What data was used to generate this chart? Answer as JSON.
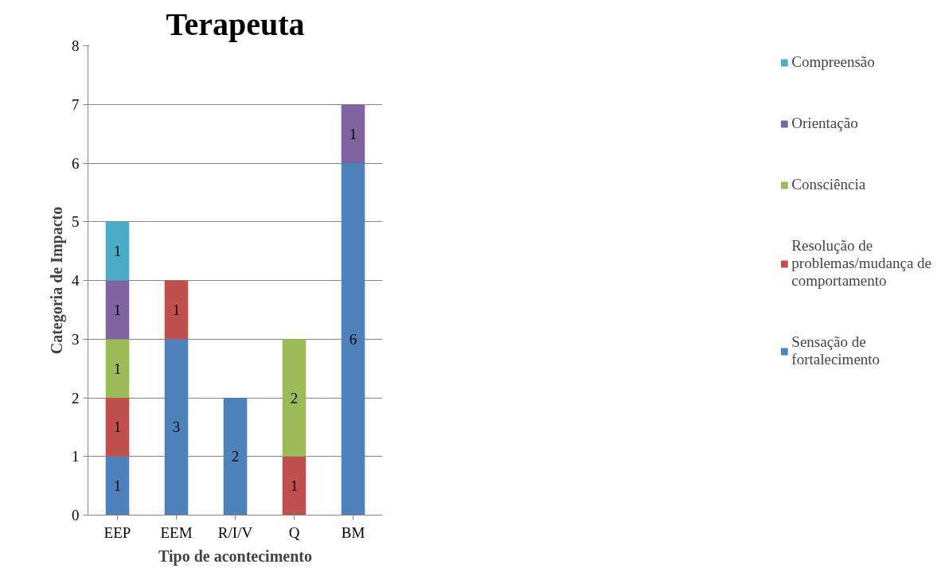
{
  "chart_data": {
    "type": "bar",
    "title": "Terapeuta",
    "xlabel": "Tipo de acontecimento",
    "ylabel": "Categoria de Impacto",
    "categories": [
      "EEP",
      "EEM",
      "R/I/V",
      "Q",
      "BM"
    ],
    "stacked": true,
    "ylim": [
      0,
      8
    ],
    "yticks": [
      0,
      1,
      2,
      3,
      4,
      5,
      6,
      7,
      8
    ],
    "grid": "y",
    "legend": "right",
    "data_labels": true,
    "series": [
      {
        "name": "Sensação de fortalecimento",
        "color": "#4f81bd",
        "values": [
          1,
          3,
          2,
          null,
          6
        ]
      },
      {
        "name": "Resolução de problemas/mudança de comportamento",
        "color": "#c0504d",
        "values": [
          1,
          1,
          null,
          1,
          null
        ]
      },
      {
        "name": "Consciência",
        "color": "#9bbb59",
        "values": [
          1,
          null,
          null,
          2,
          null
        ]
      },
      {
        "name": "Orientação",
        "color": "#8064a2",
        "values": [
          1,
          null,
          null,
          null,
          1
        ]
      },
      {
        "name": "Compreensão",
        "color": "#4bacc6",
        "values": [
          1,
          null,
          null,
          null,
          null
        ]
      }
    ]
  }
}
